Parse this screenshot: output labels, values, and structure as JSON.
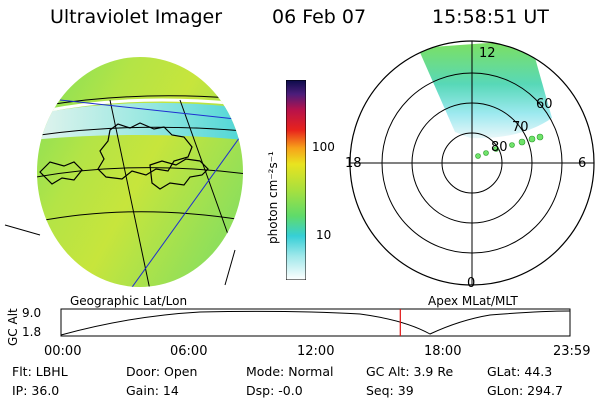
{
  "header": {
    "instrument": "Ultraviolet Imager",
    "date": "06 Feb 07",
    "time": "15:58:51 UT"
  },
  "colorbar": {
    "unit_label": "photon cm⁻²s⁻¹",
    "ticks": [
      "100",
      "10"
    ]
  },
  "polar_plot": {
    "mlt_labels": [
      "12",
      "18",
      "6",
      "0"
    ],
    "mlat_labels": [
      "60",
      "70",
      "80"
    ]
  },
  "timeline": {
    "left_label": "Geographic Lat/Lon",
    "right_label": "Apex MLat/MLT",
    "y_axis_label": "GC Alt",
    "y_ticks": [
      "9.0",
      "1.8"
    ],
    "x_ticks": [
      "00:00",
      "06:00",
      "12:00",
      "18:00",
      "23:59"
    ],
    "current_time_fraction": 0.6666
  },
  "info": {
    "filter": "Flt: LBHL",
    "door": "Door: Open",
    "mode": "Mode: Normal",
    "gc_alt": "GC Alt: 3.9 Re",
    "glat": "GLat:  44.3",
    "ip": "IP: 36.0",
    "gain": "Gain: 14",
    "dsp": "Dsp:   -0.0",
    "seq": "Seq: 39",
    "glon": "GLon: 294.7"
  },
  "colors": {
    "grid": "#000000",
    "nav_line": "#1f2fd0",
    "time_marker": "#e01010",
    "aurora_green": "#6fe36a"
  }
}
